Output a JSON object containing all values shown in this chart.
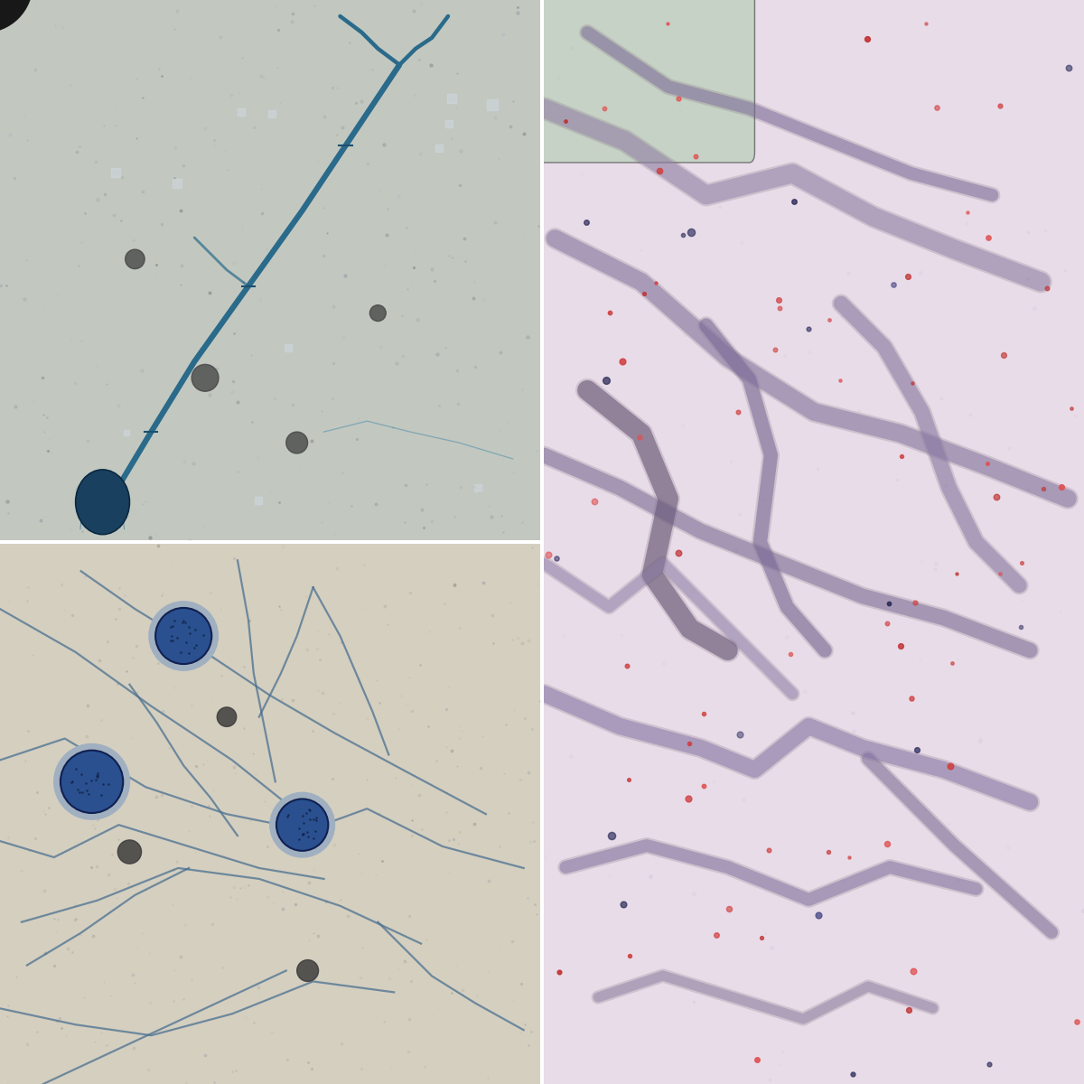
{
  "layout": {
    "figure_width": 12.0,
    "figure_height": 12.0,
    "dpi": 100,
    "background_color": "#ffffff"
  },
  "panels": {
    "top_left": {
      "bg_color": "#c2c8c0",
      "hyphae_color": "#2a6a8a",
      "sporangium_color": "#1a4060"
    },
    "bottom_left": {
      "bg_color": "#d5cfc0",
      "hyphae_color": "#4a7090"
    },
    "right": {
      "bg_color": "#e8dce8",
      "hyphae_color": "#9080a8",
      "green_patch_color": "#a0c8a0",
      "rbc_color": "#d04040",
      "nuclei_color": "#303060"
    }
  }
}
